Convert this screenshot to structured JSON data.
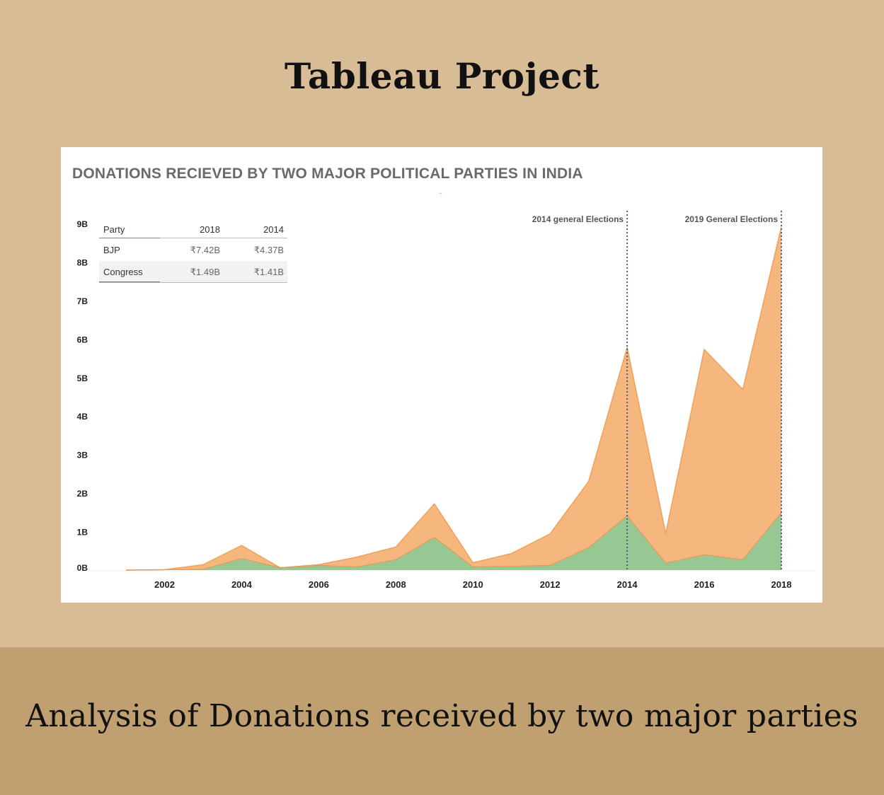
{
  "header": {
    "title": "Tableau Project"
  },
  "footer": {
    "caption": "Analysis of Donations received by two major parties"
  },
  "viz": {
    "title": "DONATIONS RECIEVED BY TWO MAJOR POLITICAL PARTIES IN INDIA",
    "dots": "..",
    "colors": {
      "bjp": "#f5b77d",
      "bjp_line": "#f0a05a",
      "congress": "#97c894",
      "congress_line": "#e09a5a",
      "ref_line": "#4b5e8a"
    },
    "table": {
      "headers": [
        "Party",
        "2018",
        "2014"
      ],
      "rows": [
        [
          "BJP",
          "₹7.42B",
          "₹4.37B"
        ],
        [
          "Congress",
          "₹1.49B",
          "₹1.41B"
        ]
      ]
    }
  },
  "chart_data": {
    "type": "area",
    "stacked": true,
    "x": [
      2001,
      2002,
      2003,
      2004,
      2005,
      2006,
      2007,
      2008,
      2009,
      2010,
      2011,
      2012,
      2013,
      2014,
      2015,
      2016,
      2017,
      2018
    ],
    "series": [
      {
        "name": "Congress",
        "color": "#97c894",
        "values": [
          0.0,
          0.01,
          0.02,
          0.3,
          0.06,
          0.12,
          0.08,
          0.27,
          0.85,
          0.08,
          0.1,
          0.12,
          0.58,
          1.41,
          0.18,
          0.4,
          0.27,
          1.49
        ]
      },
      {
        "name": "BJP",
        "color": "#f5b77d",
        "values": [
          0.0,
          0.0,
          0.12,
          0.34,
          0.0,
          0.02,
          0.26,
          0.33,
          0.87,
          0.11,
          0.33,
          0.82,
          1.72,
          4.37,
          0.77,
          5.33,
          4.42,
          7.42
        ]
      }
    ],
    "x_ticks": [
      "2002",
      "2004",
      "2006",
      "2008",
      "2010",
      "2012",
      "2014",
      "2016",
      "2018"
    ],
    "y_ticks": [
      "0B",
      "1B",
      "2B",
      "3B",
      "4B",
      "5B",
      "6B",
      "7B",
      "8B",
      "9B"
    ],
    "ylim": [
      0,
      9
    ],
    "reference_lines": [
      {
        "x": 2014,
        "label": "2014 general Elections"
      },
      {
        "x": 2018,
        "label": "2019 General Elections"
      }
    ],
    "grid": false
  }
}
